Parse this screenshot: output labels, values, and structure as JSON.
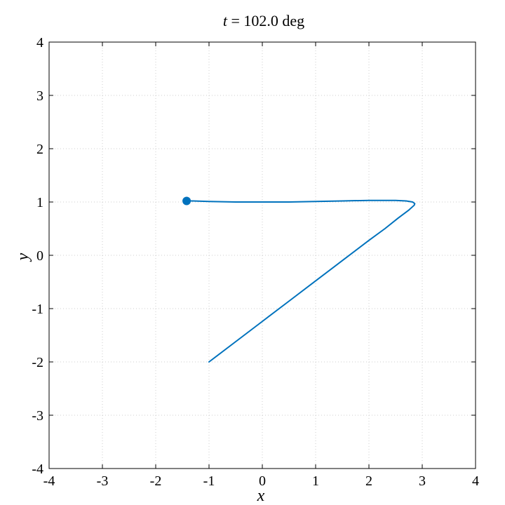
{
  "chart_data": {
    "type": "line",
    "title": {
      "variable": "t",
      "equals": " = ",
      "value_text": "102.0 deg"
    },
    "xlabel": "x",
    "ylabel": "y",
    "xlim": [
      -4,
      4
    ],
    "ylim": [
      -4,
      4
    ],
    "grid": true,
    "x_ticks": [
      -4,
      -3,
      -2,
      -1,
      0,
      1,
      2,
      3,
      4
    ],
    "y_ticks": [
      -4,
      -3,
      -2,
      -1,
      0,
      1,
      2,
      3,
      4
    ],
    "x_tick_labels": [
      "-4",
      "-3",
      "-2",
      "-1",
      "0",
      "1",
      "2",
      "3",
      "4"
    ],
    "y_tick_labels": [
      "-4",
      "-3",
      "-2",
      "-1",
      "0",
      "1",
      "2",
      "3",
      "4"
    ],
    "series": [
      {
        "color": "#0072BD",
        "x": [
          -1.0,
          -0.5,
          0.0,
          0.5,
          1.0,
          1.5,
          2.0,
          2.3,
          2.55,
          2.75,
          2.85,
          2.86,
          2.82,
          2.7,
          2.5,
          2.35,
          2.2,
          2.0,
          1.5,
          1.0,
          0.5,
          0.0,
          -0.5,
          -1.0,
          -1.3,
          -1.42
        ],
        "y": [
          -2.0,
          -1.62,
          -1.24,
          -0.86,
          -0.48,
          -0.1,
          0.28,
          0.5,
          0.7,
          0.85,
          0.94,
          0.97,
          1.0,
          1.02,
          1.03,
          1.03,
          1.03,
          1.03,
          1.02,
          1.01,
          1.0,
          1.0,
          1.0,
          1.01,
          1.02,
          1.02
        ]
      }
    ],
    "marker": {
      "x": -1.42,
      "y": 1.02,
      "color": "#0072BD"
    }
  }
}
